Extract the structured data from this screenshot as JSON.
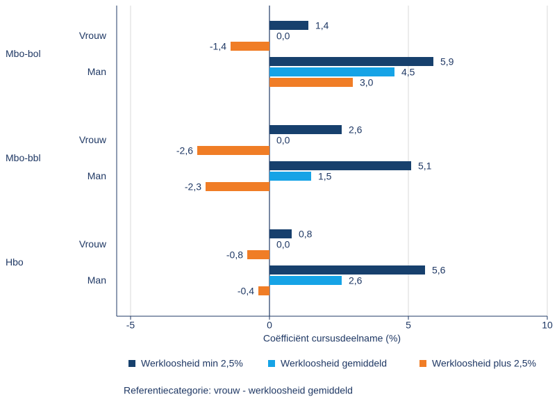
{
  "chart_data": {
    "type": "hbar",
    "xlabel": "Coëfficiënt cursusdeelname (%)",
    "note": "Referentiecategorie: vrouw - werkloosheid gemiddeld",
    "groups": [
      "Mbo-bol",
      "Mbo-bbl",
      "Hbo"
    ],
    "categories": [
      "Vrouw",
      "Man",
      "Vrouw",
      "Man",
      "Vrouw",
      "Man"
    ],
    "series": [
      {
        "name": "Werkloosheid min 2,5%",
        "color": "#17406d",
        "values": [
          1.4,
          5.9,
          2.6,
          5.1,
          0.8,
          5.6
        ],
        "value_labels": [
          "1,4",
          "5,9",
          "2,6",
          "5,1",
          "0,8",
          "5,6"
        ]
      },
      {
        "name": "Werkloosheid gemiddeld",
        "color": "#16a3e6",
        "values": [
          0.0,
          4.5,
          0.0,
          1.5,
          0.0,
          2.6
        ],
        "value_labels": [
          "0,0",
          "4,5",
          "0,0",
          "1,5",
          "0,0",
          "2,6"
        ]
      },
      {
        "name": "Werkloosheid plus 2,5%",
        "color": "#f07d26",
        "values": [
          -1.4,
          3.0,
          -2.6,
          -2.3,
          -0.8,
          -0.4
        ],
        "value_labels": [
          "-1,4",
          "3,0",
          "-2,6",
          "-2,3",
          "-0,8",
          "-0,4"
        ]
      }
    ],
    "xlim": [
      -5.5,
      10
    ],
    "xticks": [
      -5,
      0,
      5,
      10
    ],
    "grid": true,
    "legend": "bottom"
  }
}
